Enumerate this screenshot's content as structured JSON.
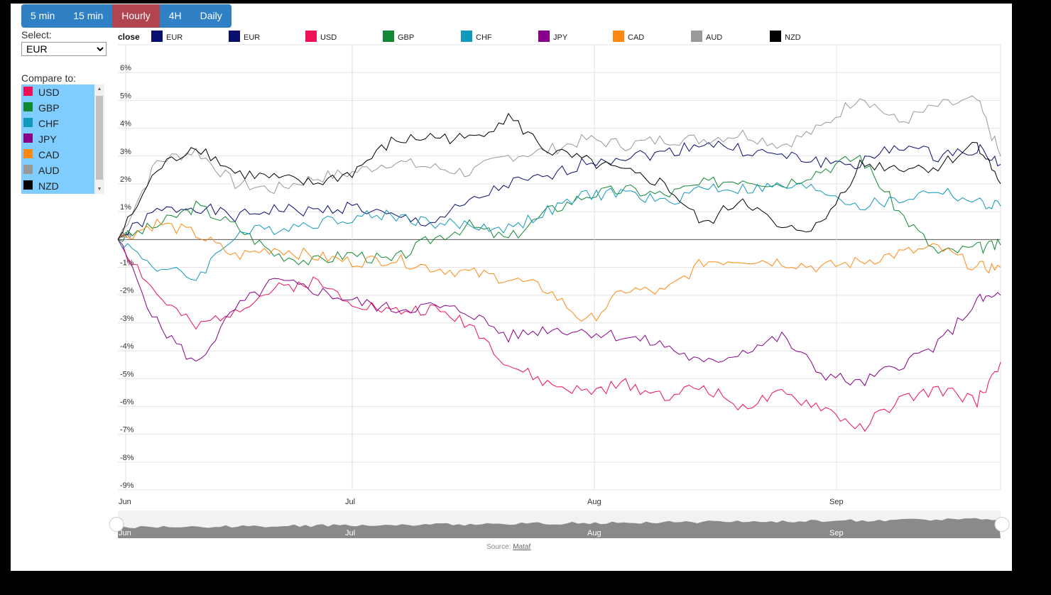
{
  "timeframes": [
    {
      "label": "5 min",
      "active": false
    },
    {
      "label": "15 min",
      "active": false
    },
    {
      "label": "Hourly",
      "active": true
    },
    {
      "label": "4H",
      "active": false
    },
    {
      "label": "Daily",
      "active": false
    }
  ],
  "select_label": "Select:",
  "base_currency": "EUR",
  "compare_label": "Compare to:",
  "compare_items": [
    {
      "label": "USD",
      "color": "#ee1155"
    },
    {
      "label": "GBP",
      "color": "#118833"
    },
    {
      "label": "CHF",
      "color": "#1199bb"
    },
    {
      "label": "JPY",
      "color": "#880088"
    },
    {
      "label": "CAD",
      "color": "#ff8811"
    },
    {
      "label": "AUD",
      "color": "#999999"
    },
    {
      "label": "NZD",
      "color": "#000000"
    }
  ],
  "source": {
    "prefix": "Source: ",
    "link": "Mataf"
  },
  "chart_data": {
    "type": "line",
    "legend_title": "close",
    "legend": [
      {
        "label": "EUR",
        "color": "#0a0f6e"
      },
      {
        "label": "EUR",
        "color": "#0a0f6e"
      },
      {
        "label": "USD",
        "color": "#ee1155"
      },
      {
        "label": "GBP",
        "color": "#118833"
      },
      {
        "label": "CHF",
        "color": "#1199bb"
      },
      {
        "label": "JPY",
        "color": "#880088"
      },
      {
        "label": "CAD",
        "color": "#ff8811"
      },
      {
        "label": "AUD",
        "color": "#999999"
      },
      {
        "label": "NZD",
        "color": "#000000"
      }
    ],
    "legend_position": "top",
    "ylim": [
      -9,
      7
    ],
    "yticks": [
      6,
      5,
      4,
      3,
      2,
      1,
      -1,
      -2,
      -3,
      -4,
      -5,
      -6,
      -7,
      -8,
      -9
    ],
    "ytick_suffix": "%",
    "zero_label": "0%",
    "grid": true,
    "xlim": [
      0,
      113
    ],
    "xticks": [
      {
        "label": "Jun",
        "x": 1
      },
      {
        "label": "Jul",
        "x": 30
      },
      {
        "label": "Aug",
        "x": 61
      },
      {
        "label": "Sep",
        "x": 92
      }
    ],
    "x_unit": "day (Day 0 = May 31)",
    "series": [
      {
        "name": "EUR",
        "color": "#0a0f6e",
        "x": [
          0,
          5,
          10,
          15,
          20,
          25,
          30,
          35,
          40,
          45,
          50,
          55,
          60,
          65,
          70,
          75,
          80,
          85,
          90,
          95,
          100,
          105,
          110,
          113
        ],
        "y": [
          0,
          1.0,
          1.2,
          0.8,
          1.1,
          1.0,
          1.2,
          0.8,
          0.6,
          1.3,
          2.0,
          2.2,
          2.8,
          3.0,
          3.1,
          3.5,
          3.2,
          3.0,
          2.8,
          2.7,
          3.4,
          3.0,
          3.3,
          2.7
        ]
      },
      {
        "name": "USD",
        "color": "#ee1155",
        "x": [
          0,
          5,
          10,
          15,
          20,
          25,
          30,
          35,
          40,
          45,
          50,
          55,
          60,
          65,
          70,
          75,
          80,
          85,
          90,
          95,
          100,
          105,
          110,
          113
        ],
        "y": [
          0,
          -2.0,
          -3.2,
          -2.5,
          -1.8,
          -1.5,
          -2.2,
          -2.6,
          -2.5,
          -3.0,
          -4.5,
          -5.2,
          -5.5,
          -5.2,
          -5.6,
          -5.3,
          -6.0,
          -5.6,
          -6.0,
          -6.8,
          -5.8,
          -5.4,
          -5.8,
          -4.4
        ]
      },
      {
        "name": "GBP",
        "color": "#118833",
        "x": [
          0,
          5,
          10,
          15,
          20,
          25,
          30,
          35,
          40,
          45,
          50,
          55,
          60,
          65,
          70,
          75,
          80,
          85,
          90,
          95,
          100,
          105,
          110,
          113
        ],
        "y": [
          0,
          0.5,
          1.2,
          0.5,
          -0.5,
          -0.8,
          -0.5,
          -0.8,
          0,
          0.5,
          0,
          1.0,
          1.6,
          1.8,
          1.6,
          2.0,
          2.2,
          2.0,
          2.5,
          3.0,
          1.0,
          -0.5,
          -0.3,
          -0.2
        ]
      },
      {
        "name": "CHF",
        "color": "#1199bb",
        "x": [
          0,
          5,
          10,
          15,
          20,
          25,
          30,
          35,
          40,
          45,
          50,
          55,
          60,
          65,
          70,
          75,
          80,
          85,
          90,
          95,
          100,
          105,
          110,
          113
        ],
        "y": [
          0,
          -1.0,
          -1.4,
          0.2,
          0.4,
          0.6,
          0.8,
          0.9,
          0.6,
          0.5,
          0.4,
          1.0,
          1.6,
          1.7,
          1.3,
          1.9,
          1.8,
          1.9,
          1.8,
          1.2,
          1.4,
          1.8,
          1.3,
          1.2
        ]
      },
      {
        "name": "JPY",
        "color": "#880088",
        "x": [
          0,
          5,
          10,
          15,
          20,
          25,
          30,
          35,
          40,
          45,
          50,
          55,
          60,
          65,
          70,
          75,
          80,
          85,
          90,
          95,
          100,
          105,
          110,
          113
        ],
        "y": [
          0,
          -3.0,
          -4.5,
          -2.5,
          -1.5,
          -1.8,
          -2.2,
          -2.5,
          -2.4,
          -2.6,
          -3.5,
          -3.2,
          -3.3,
          -3.5,
          -3.8,
          -4.5,
          -4.0,
          -3.5,
          -4.8,
          -5.2,
          -4.5,
          -3.8,
          -2.2,
          -2.0
        ]
      },
      {
        "name": "CAD",
        "color": "#ff8811",
        "x": [
          0,
          5,
          10,
          15,
          20,
          25,
          30,
          35,
          40,
          45,
          50,
          55,
          60,
          65,
          70,
          75,
          80,
          85,
          90,
          95,
          100,
          105,
          110,
          113
        ],
        "y": [
          0,
          0.6,
          0.2,
          -0.6,
          -0.3,
          -0.6,
          -0.8,
          -0.7,
          -1.0,
          -1.2,
          -1.4,
          -1.8,
          -3.0,
          -1.8,
          -1.9,
          -0.8,
          -0.7,
          -0.8,
          -1.0,
          -0.8,
          -0.5,
          -0.3,
          -1.0,
          -1.0
        ]
      },
      {
        "name": "AUD",
        "color": "#999999",
        "x": [
          0,
          5,
          10,
          15,
          20,
          25,
          30,
          35,
          40,
          45,
          50,
          55,
          60,
          65,
          70,
          75,
          80,
          85,
          90,
          95,
          100,
          105,
          110,
          113
        ],
        "y": [
          0,
          2.8,
          3.2,
          2.0,
          1.8,
          2.2,
          2.4,
          2.8,
          2.6,
          2.4,
          3.0,
          3.2,
          3.6,
          3.4,
          3.6,
          3.6,
          3.8,
          3.4,
          4.0,
          5.2,
          4.2,
          4.8,
          5.0,
          3.0
        ]
      },
      {
        "name": "NZD",
        "color": "#000000",
        "x": [
          0,
          5,
          10,
          15,
          20,
          25,
          30,
          35,
          40,
          45,
          50,
          55,
          60,
          65,
          70,
          75,
          80,
          85,
          90,
          95,
          100,
          105,
          110,
          113
        ],
        "y": [
          0,
          2.5,
          3.4,
          2.4,
          2.2,
          2.0,
          2.4,
          3.5,
          3.7,
          3.6,
          4.4,
          3.2,
          2.8,
          2.4,
          2.0,
          0.5,
          1.5,
          0.3,
          0.5,
          2.7,
          2.6,
          2.6,
          3.5,
          2.0
        ]
      }
    ]
  }
}
